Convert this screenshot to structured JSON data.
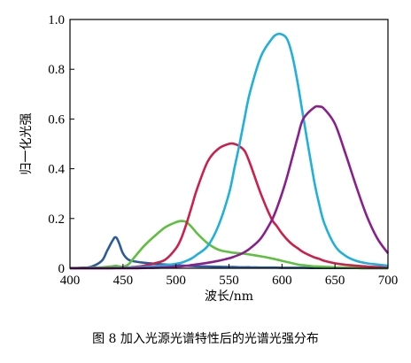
{
  "figure": {
    "caption": "图 8   加入光源光谱特性后的光谱光强分布"
  },
  "chart_data": {
    "type": "line",
    "title": "",
    "xlabel": "波长/nm",
    "ylabel": "归一化光强",
    "xlim": [
      400,
      700
    ],
    "ylim": [
      0,
      1.0
    ],
    "x_ticks": [
      "400",
      "450",
      "500",
      "550",
      "600",
      "650",
      "700"
    ],
    "y_ticks": [
      "0",
      "0.2",
      "0.4",
      "0.6",
      "0.8",
      "1.0"
    ],
    "grid": false,
    "legend": "none",
    "x": [
      400,
      410,
      420,
      430,
      435,
      440,
      443,
      446,
      450,
      455,
      460,
      470,
      480,
      490,
      500,
      505,
      510,
      515,
      520,
      530,
      540,
      550,
      555,
      560,
      565,
      570,
      580,
      590,
      595,
      600,
      605,
      610,
      615,
      620,
      630,
      635,
      640,
      650,
      660,
      670,
      680,
      690,
      700
    ],
    "series": [
      {
        "color": "#2b5b9c",
        "values": [
          0.001,
          0.002,
          0.006,
          0.03,
          0.07,
          0.11,
          0.125,
          0.105,
          0.06,
          0.035,
          0.028,
          0.022,
          0.018,
          0.015,
          0.012,
          0.011,
          0.01,
          0.009,
          0.008,
          0.007,
          0.006,
          0.005,
          0.005,
          0.004,
          0.004,
          0.004,
          0.003,
          0.003,
          0.003,
          0.002,
          0.002,
          0.002,
          0.002,
          0.002,
          0.001,
          0.001,
          0.001,
          0.001,
          0.001,
          0.001,
          0.0,
          0.0,
          0.0
        ]
      },
      {
        "color": "#5fbf3f",
        "values": [
          0.0,
          0.001,
          0.002,
          0.004,
          0.006,
          0.008,
          0.01,
          0.008,
          0.006,
          0.015,
          0.04,
          0.09,
          0.13,
          0.165,
          0.185,
          0.19,
          0.185,
          0.165,
          0.14,
          0.1,
          0.075,
          0.065,
          0.062,
          0.06,
          0.058,
          0.055,
          0.048,
          0.04,
          0.035,
          0.03,
          0.025,
          0.02,
          0.015,
          0.012,
          0.008,
          0.007,
          0.006,
          0.004,
          0.003,
          0.002,
          0.001,
          0.001,
          0.0
        ]
      },
      {
        "color": "#cc1f4a",
        "values": [
          0.0,
          0.0,
          0.0,
          0.0,
          0.0,
          0.001,
          0.001,
          0.001,
          0.002,
          0.003,
          0.005,
          0.01,
          0.02,
          0.035,
          0.08,
          0.12,
          0.18,
          0.25,
          0.32,
          0.43,
          0.48,
          0.5,
          0.5,
          0.49,
          0.47,
          0.42,
          0.3,
          0.2,
          0.17,
          0.14,
          0.115,
          0.095,
          0.08,
          0.065,
          0.045,
          0.038,
          0.03,
          0.02,
          0.014,
          0.01,
          0.007,
          0.005,
          0.003
        ]
      },
      {
        "color": "#1fb0dc",
        "values": [
          0.0,
          0.0,
          0.0,
          0.0,
          0.0,
          0.0,
          0.001,
          0.001,
          0.001,
          0.002,
          0.003,
          0.005,
          0.008,
          0.012,
          0.018,
          0.022,
          0.03,
          0.04,
          0.055,
          0.09,
          0.17,
          0.3,
          0.4,
          0.5,
          0.61,
          0.71,
          0.85,
          0.92,
          0.94,
          0.94,
          0.92,
          0.85,
          0.74,
          0.61,
          0.36,
          0.26,
          0.18,
          0.09,
          0.05,
          0.03,
          0.02,
          0.015,
          0.01
        ]
      },
      {
        "color": "#8a1f8c",
        "values": [
          0.0,
          0.0,
          0.0,
          0.0,
          0.0,
          0.0,
          0.0,
          0.0,
          0.0,
          0.0,
          0.0,
          0.001,
          0.002,
          0.004,
          0.006,
          0.008,
          0.01,
          0.013,
          0.016,
          0.022,
          0.03,
          0.04,
          0.047,
          0.055,
          0.066,
          0.08,
          0.12,
          0.19,
          0.24,
          0.3,
          0.37,
          0.45,
          0.53,
          0.6,
          0.645,
          0.65,
          0.64,
          0.58,
          0.46,
          0.33,
          0.21,
          0.12,
          0.06
        ]
      }
    ]
  }
}
